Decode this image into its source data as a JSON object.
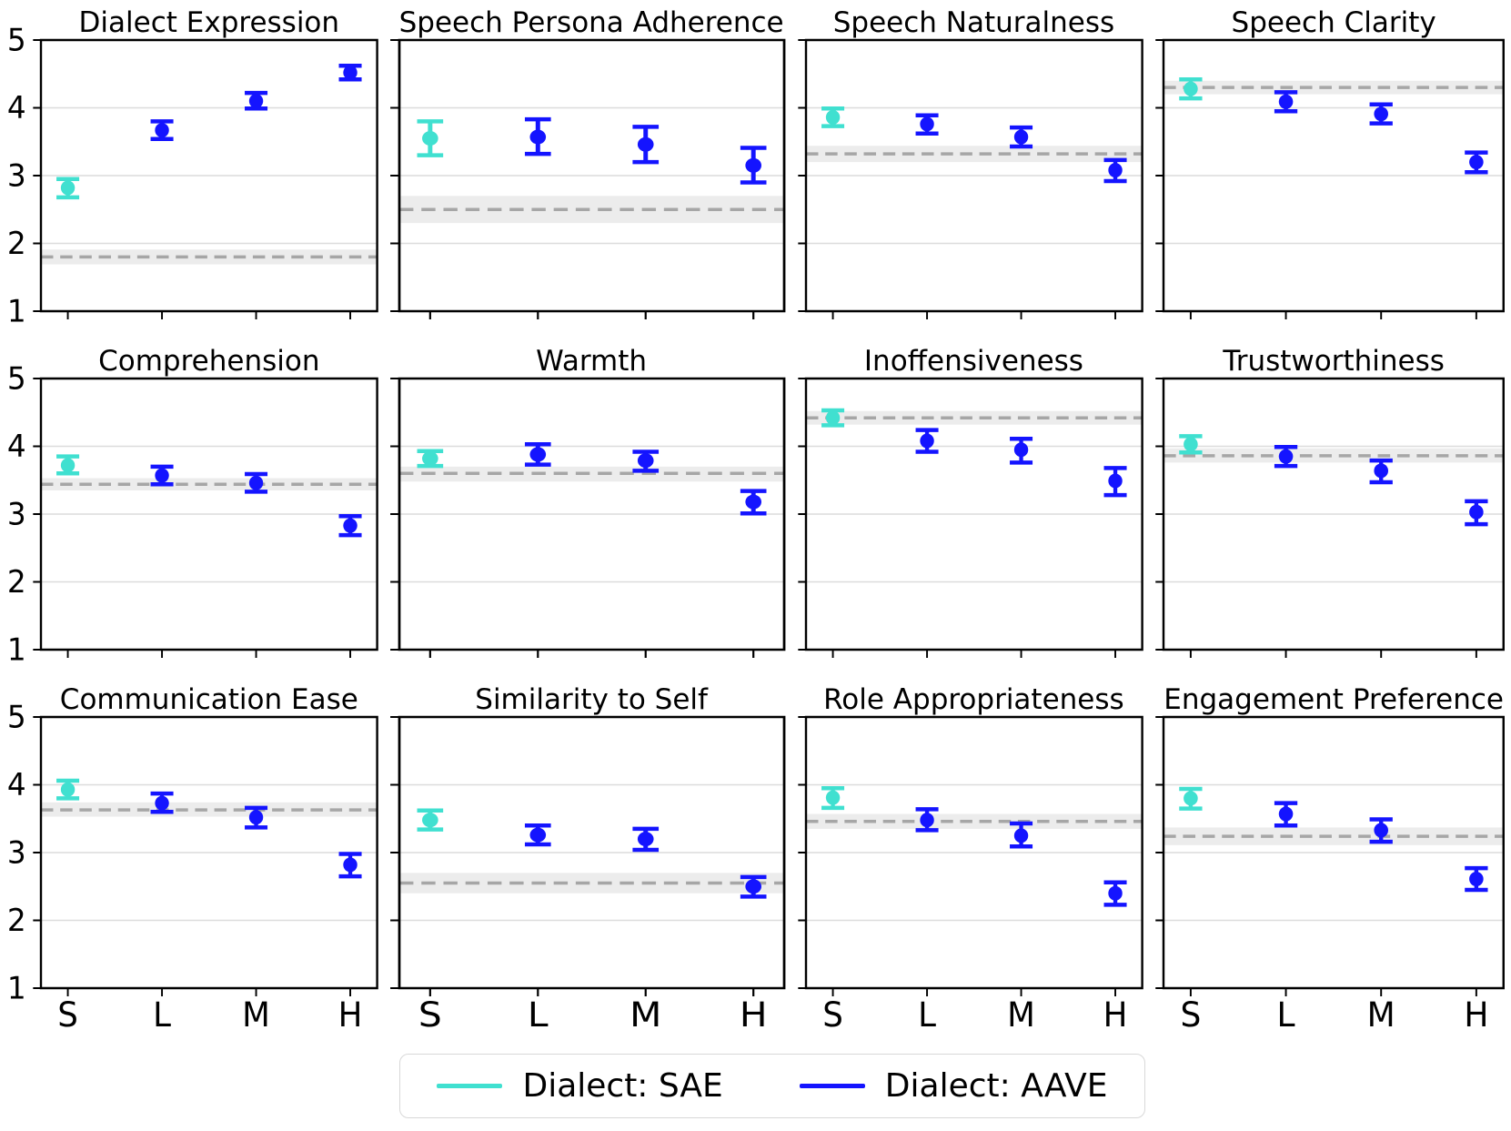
{
  "figure": {
    "ylim": [
      1,
      5
    ],
    "yticks": [
      1,
      2,
      3,
      4,
      5
    ],
    "categories": [
      "S",
      "L",
      "M",
      "H"
    ],
    "colors": {
      "sae": "#40E0D0",
      "aave": "#1414FF",
      "baseline_line": "#A6A6A6",
      "baseline_band": "#888888",
      "gridline": "#DCDCDC",
      "spine": "#000000"
    },
    "legend": [
      {
        "label": "Dialect: SAE",
        "color_key": "sae"
      },
      {
        "label": "Dialect: AAVE",
        "color_key": "aave"
      }
    ]
  },
  "chart_data": [
    {
      "type": "scatter-errorbar",
      "title": "Dialect Expression",
      "categories": [
        "S",
        "L",
        "M",
        "H"
      ],
      "xlabel": "",
      "ylabel": "",
      "ylim": [
        1,
        5
      ],
      "series": [
        {
          "name": "Dialect: SAE",
          "color_key": "sae",
          "points": [
            {
              "x": "S",
              "y": 2.82,
              "lo": 2.68,
              "hi": 2.95
            }
          ]
        },
        {
          "name": "Dialect: AAVE",
          "color_key": "aave",
          "points": [
            {
              "x": "L",
              "y": 3.67,
              "lo": 3.54,
              "hi": 3.8
            },
            {
              "x": "M",
              "y": 4.1,
              "lo": 3.99,
              "hi": 4.22
            },
            {
              "x": "H",
              "y": 4.52,
              "lo": 4.42,
              "hi": 4.62
            }
          ]
        }
      ],
      "baseline": {
        "y": 1.8,
        "lo": 1.69,
        "hi": 1.91
      }
    },
    {
      "type": "scatter-errorbar",
      "title": "Speech Persona Adherence",
      "categories": [
        "S",
        "L",
        "M",
        "H"
      ],
      "xlabel": "",
      "ylabel": "",
      "ylim": [
        1,
        5
      ],
      "series": [
        {
          "name": "Dialect: SAE",
          "color_key": "sae",
          "points": [
            {
              "x": "S",
              "y": 3.55,
              "lo": 3.3,
              "hi": 3.8
            }
          ]
        },
        {
          "name": "Dialect: AAVE",
          "color_key": "aave",
          "points": [
            {
              "x": "L",
              "y": 3.57,
              "lo": 3.32,
              "hi": 3.83
            },
            {
              "x": "M",
              "y": 3.46,
              "lo": 3.2,
              "hi": 3.72
            },
            {
              "x": "H",
              "y": 3.15,
              "lo": 2.9,
              "hi": 3.41
            }
          ]
        }
      ],
      "baseline": {
        "y": 2.5,
        "lo": 2.3,
        "hi": 2.7
      }
    },
    {
      "type": "scatter-errorbar",
      "title": "Speech Naturalness",
      "categories": [
        "S",
        "L",
        "M",
        "H"
      ],
      "xlabel": "",
      "ylabel": "",
      "ylim": [
        1,
        5
      ],
      "series": [
        {
          "name": "Dialect: SAE",
          "color_key": "sae",
          "points": [
            {
              "x": "S",
              "y": 3.86,
              "lo": 3.73,
              "hi": 3.99
            }
          ]
        },
        {
          "name": "Dialect: AAVE",
          "color_key": "aave",
          "points": [
            {
              "x": "L",
              "y": 3.76,
              "lo": 3.62,
              "hi": 3.89
            },
            {
              "x": "M",
              "y": 3.57,
              "lo": 3.43,
              "hi": 3.71
            },
            {
              "x": "H",
              "y": 3.08,
              "lo": 2.92,
              "hi": 3.23
            }
          ]
        }
      ],
      "baseline": {
        "y": 3.32,
        "lo": 3.2,
        "hi": 3.44
      }
    },
    {
      "type": "scatter-errorbar",
      "title": "Speech Clarity",
      "categories": [
        "S",
        "L",
        "M",
        "H"
      ],
      "xlabel": "",
      "ylabel": "",
      "ylim": [
        1,
        5
      ],
      "series": [
        {
          "name": "Dialect: SAE",
          "color_key": "sae",
          "points": [
            {
              "x": "S",
              "y": 4.28,
              "lo": 4.14,
              "hi": 4.42
            }
          ]
        },
        {
          "name": "Dialect: AAVE",
          "color_key": "aave",
          "points": [
            {
              "x": "L",
              "y": 4.09,
              "lo": 3.95,
              "hi": 4.23
            },
            {
              "x": "M",
              "y": 3.91,
              "lo": 3.77,
              "hi": 4.05
            },
            {
              "x": "H",
              "y": 3.2,
              "lo": 3.05,
              "hi": 3.34
            }
          ]
        }
      ],
      "baseline": {
        "y": 4.3,
        "lo": 4.2,
        "hi": 4.4
      }
    },
    {
      "type": "scatter-errorbar",
      "title": "Comprehension",
      "categories": [
        "S",
        "L",
        "M",
        "H"
      ],
      "xlabel": "",
      "ylabel": "",
      "ylim": [
        1,
        5
      ],
      "series": [
        {
          "name": "Dialect: SAE",
          "color_key": "sae",
          "points": [
            {
              "x": "S",
              "y": 3.72,
              "lo": 3.6,
              "hi": 3.85
            }
          ]
        },
        {
          "name": "Dialect: AAVE",
          "color_key": "aave",
          "points": [
            {
              "x": "L",
              "y": 3.57,
              "lo": 3.44,
              "hi": 3.7
            },
            {
              "x": "M",
              "y": 3.46,
              "lo": 3.33,
              "hi": 3.59
            },
            {
              "x": "H",
              "y": 2.83,
              "lo": 2.69,
              "hi": 2.97
            }
          ]
        }
      ],
      "baseline": {
        "y": 3.44,
        "lo": 3.35,
        "hi": 3.53
      }
    },
    {
      "type": "scatter-errorbar",
      "title": "Warmth",
      "categories": [
        "S",
        "L",
        "M",
        "H"
      ],
      "xlabel": "",
      "ylabel": "",
      "ylim": [
        1,
        5
      ],
      "series": [
        {
          "name": "Dialect: SAE",
          "color_key": "sae",
          "points": [
            {
              "x": "S",
              "y": 3.82,
              "lo": 3.71,
              "hi": 3.93
            }
          ]
        },
        {
          "name": "Dialect: AAVE",
          "color_key": "aave",
          "points": [
            {
              "x": "L",
              "y": 3.88,
              "lo": 3.73,
              "hi": 4.03
            },
            {
              "x": "M",
              "y": 3.79,
              "lo": 3.64,
              "hi": 3.92
            },
            {
              "x": "H",
              "y": 3.18,
              "lo": 3.01,
              "hi": 3.34
            }
          ]
        }
      ],
      "baseline": {
        "y": 3.6,
        "lo": 3.48,
        "hi": 3.7
      }
    },
    {
      "type": "scatter-errorbar",
      "title": "Inoffensiveness",
      "categories": [
        "S",
        "L",
        "M",
        "H"
      ],
      "xlabel": "",
      "ylabel": "",
      "ylim": [
        1,
        5
      ],
      "series": [
        {
          "name": "Dialect: SAE",
          "color_key": "sae",
          "points": [
            {
              "x": "S",
              "y": 4.42,
              "lo": 4.31,
              "hi": 4.53
            }
          ]
        },
        {
          "name": "Dialect: AAVE",
          "color_key": "aave",
          "points": [
            {
              "x": "L",
              "y": 4.08,
              "lo": 3.92,
              "hi": 4.24
            },
            {
              "x": "M",
              "y": 3.95,
              "lo": 3.76,
              "hi": 4.11
            },
            {
              "x": "H",
              "y": 3.49,
              "lo": 3.28,
              "hi": 3.68
            }
          ]
        }
      ],
      "baseline": {
        "y": 4.42,
        "lo": 4.32,
        "hi": 4.52
      }
    },
    {
      "type": "scatter-errorbar",
      "title": "Trustworthiness",
      "categories": [
        "S",
        "L",
        "M",
        "H"
      ],
      "xlabel": "",
      "ylabel": "",
      "ylim": [
        1,
        5
      ],
      "series": [
        {
          "name": "Dialect: SAE",
          "color_key": "sae",
          "points": [
            {
              "x": "S",
              "y": 4.03,
              "lo": 3.91,
              "hi": 4.15
            }
          ]
        },
        {
          "name": "Dialect: AAVE",
          "color_key": "aave",
          "points": [
            {
              "x": "L",
              "y": 3.85,
              "lo": 3.71,
              "hi": 3.99
            },
            {
              "x": "M",
              "y": 3.64,
              "lo": 3.47,
              "hi": 3.79
            },
            {
              "x": "H",
              "y": 3.03,
              "lo": 2.85,
              "hi": 3.19
            }
          ]
        }
      ],
      "baseline": {
        "y": 3.86,
        "lo": 3.76,
        "hi": 3.97
      }
    },
    {
      "type": "scatter-errorbar",
      "title": "Communication Ease",
      "categories": [
        "S",
        "L",
        "M",
        "H"
      ],
      "xlabel": "",
      "ylabel": "",
      "ylim": [
        1,
        5
      ],
      "series": [
        {
          "name": "Dialect: SAE",
          "color_key": "sae",
          "points": [
            {
              "x": "S",
              "y": 3.93,
              "lo": 3.8,
              "hi": 4.06
            }
          ]
        },
        {
          "name": "Dialect: AAVE",
          "color_key": "aave",
          "points": [
            {
              "x": "L",
              "y": 3.73,
              "lo": 3.6,
              "hi": 3.87
            },
            {
              "x": "M",
              "y": 3.52,
              "lo": 3.37,
              "hi": 3.66
            },
            {
              "x": "H",
              "y": 2.82,
              "lo": 2.65,
              "hi": 2.98
            }
          ]
        }
      ],
      "baseline": {
        "y": 3.63,
        "lo": 3.53,
        "hi": 3.74
      }
    },
    {
      "type": "scatter-errorbar",
      "title": "Similarity to Self",
      "categories": [
        "S",
        "L",
        "M",
        "H"
      ],
      "xlabel": "",
      "ylabel": "",
      "ylim": [
        1,
        5
      ],
      "series": [
        {
          "name": "Dialect: SAE",
          "color_key": "sae",
          "points": [
            {
              "x": "S",
              "y": 3.48,
              "lo": 3.34,
              "hi": 3.62
            }
          ]
        },
        {
          "name": "Dialect: AAVE",
          "color_key": "aave",
          "points": [
            {
              "x": "L",
              "y": 3.26,
              "lo": 3.12,
              "hi": 3.4
            },
            {
              "x": "M",
              "y": 3.2,
              "lo": 3.04,
              "hi": 3.35
            },
            {
              "x": "H",
              "y": 2.5,
              "lo": 2.35,
              "hi": 2.64
            }
          ]
        }
      ],
      "baseline": {
        "y": 2.55,
        "lo": 2.4,
        "hi": 2.7
      }
    },
    {
      "type": "scatter-errorbar",
      "title": "Role Appropriateness",
      "categories": [
        "S",
        "L",
        "M",
        "H"
      ],
      "xlabel": "",
      "ylabel": "",
      "ylim": [
        1,
        5
      ],
      "series": [
        {
          "name": "Dialect: SAE",
          "color_key": "sae",
          "points": [
            {
              "x": "S",
              "y": 3.81,
              "lo": 3.66,
              "hi": 3.95
            }
          ]
        },
        {
          "name": "Dialect: AAVE",
          "color_key": "aave",
          "points": [
            {
              "x": "L",
              "y": 3.48,
              "lo": 3.33,
              "hi": 3.64
            },
            {
              "x": "M",
              "y": 3.25,
              "lo": 3.09,
              "hi": 3.43
            },
            {
              "x": "H",
              "y": 2.4,
              "lo": 2.23,
              "hi": 2.56
            }
          ]
        }
      ],
      "baseline": {
        "y": 3.46,
        "lo": 3.35,
        "hi": 3.57
      }
    },
    {
      "type": "scatter-errorbar",
      "title": "Engagement Preference",
      "categories": [
        "S",
        "L",
        "M",
        "H"
      ],
      "xlabel": "",
      "ylabel": "",
      "ylim": [
        1,
        5
      ],
      "series": [
        {
          "name": "Dialect: SAE",
          "color_key": "sae",
          "points": [
            {
              "x": "S",
              "y": 3.8,
              "lo": 3.65,
              "hi": 3.94
            }
          ]
        },
        {
          "name": "Dialect: AAVE",
          "color_key": "aave",
          "points": [
            {
              "x": "L",
              "y": 3.57,
              "lo": 3.4,
              "hi": 3.73
            },
            {
              "x": "M",
              "y": 3.33,
              "lo": 3.16,
              "hi": 3.49
            },
            {
              "x": "H",
              "y": 2.61,
              "lo": 2.45,
              "hi": 2.77
            }
          ]
        }
      ],
      "baseline": {
        "y": 3.24,
        "lo": 3.11,
        "hi": 3.37
      }
    }
  ]
}
